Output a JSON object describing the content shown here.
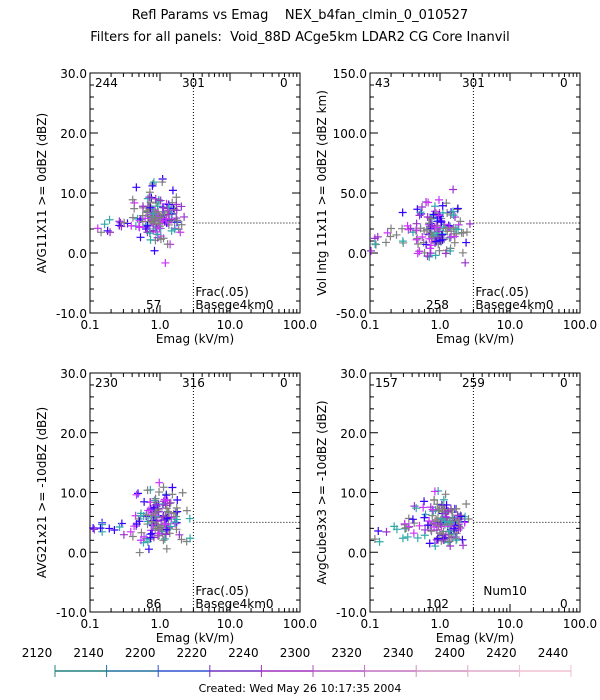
{
  "header": {
    "title_line1": "Refl Params vs Emag    NEX_b4fan_clmin_0_010527",
    "title_line2": "Filters for all panels:  Void_88D ACge5km LDAR2 CG Core Inanvil"
  },
  "footer": {
    "created": "Created: Wed May 26 10:17:35 2004"
  },
  "colors": {
    "blue": "#3300ff",
    "purple": "#9933cc",
    "magenta": "#cc33ff",
    "gray": "#808080",
    "teal": "#33aaaa"
  },
  "time_axis": {
    "labels": [
      "2120",
      "2140",
      "2200",
      "2220",
      "2240",
      "2300",
      "2320",
      "2340",
      "2400",
      "2420",
      "2440"
    ],
    "segment_colors": [
      "#208080",
      "#2070a0",
      "#3050d0",
      "#7030c0",
      "#a030c0",
      "#b050c0",
      "#c070c0",
      "#d090c0",
      "#e0a8c8",
      "#f0c0d0"
    ]
  },
  "chart_data": [
    {
      "type": "scatter",
      "xlabel": "Emag (kV/m)",
      "ylabel": "AVG11X11 >= 0dBZ (dBZ)",
      "xscale": "log",
      "xlim": [
        0.1,
        100.0
      ],
      "ylim": [
        -10.0,
        30.0
      ],
      "xticks": [
        "0.1",
        "1.0",
        "10.0",
        "100.0"
      ],
      "yticks": [
        "-10.0",
        "0.0",
        "10.0",
        "20.0",
        "30.0"
      ],
      "vline_x": 3.0,
      "hline_y": 5.0,
      "counts_top": [
        "244",
        "301",
        "0"
      ],
      "count_bottom": "57",
      "annotation": [
        "Frac(.05)",
        "Basege4km0"
      ],
      "cluster": {
        "x_center": 1.0,
        "y_center": 6.0
      }
    },
    {
      "type": "scatter",
      "xlabel": "Emag (kV/m)",
      "ylabel": "Vol Intg 11x11 >= 0dBZ (dBZ km)",
      "xscale": "log",
      "xlim": [
        0.1,
        100.0
      ],
      "ylim": [
        -50.0,
        150.0
      ],
      "xticks": [
        "0.1",
        "1.0",
        "10.0",
        "100.0"
      ],
      "yticks": [
        "-50.0",
        "0.0",
        "50.0",
        "100.0",
        "150.0"
      ],
      "vline_x": 3.0,
      "hline_y": 25.0,
      "counts_top": [
        "43",
        "301",
        "0"
      ],
      "count_bottom": "258",
      "annotation": [
        "Frac(.05)",
        "Basege4km0"
      ],
      "cluster": {
        "x_center": 1.0,
        "y_center": 20.0
      }
    },
    {
      "type": "scatter",
      "xlabel": "Emag (kV/m)",
      "ylabel": "AVG21x21 >= -10dBZ (dBZ)",
      "xscale": "log",
      "xlim": [
        0.1,
        100.0
      ],
      "ylim": [
        -10.0,
        30.0
      ],
      "xticks": [
        "0.1",
        "1.0",
        "10.0",
        "100.0"
      ],
      "yticks": [
        "-10.0",
        "0.0",
        "10.0",
        "20.0",
        "30.0"
      ],
      "vline_x": 3.0,
      "hline_y": 5.0,
      "counts_top": [
        "230",
        "316",
        "0"
      ],
      "count_bottom": "86",
      "annotation": [
        "Frac(.05)",
        "Basege4km0"
      ],
      "cluster": {
        "x_center": 1.0,
        "y_center": 5.5
      }
    },
    {
      "type": "scatter",
      "xlabel": "Emag (kV/m)",
      "ylabel": "AvgCube3x3 >= -10dBZ (dBZ)",
      "xscale": "log",
      "xlim": [
        0.1,
        100.0
      ],
      "ylim": [
        -10.0,
        30.0
      ],
      "xticks": [
        "0.1",
        "1.0",
        "10.0",
        "100.0"
      ],
      "yticks": [
        "-10.0",
        "0.0",
        "10.0",
        "20.0",
        "30.0"
      ],
      "vline_x": 3.0,
      "hline_y": 5.0,
      "counts_top": [
        "157",
        "259",
        "0"
      ],
      "count_bottom": "102",
      "count_bottom_right": "0",
      "annotation": [
        "Num10"
      ],
      "cluster": {
        "x_center": 1.2,
        "y_center": 5.0
      }
    }
  ]
}
